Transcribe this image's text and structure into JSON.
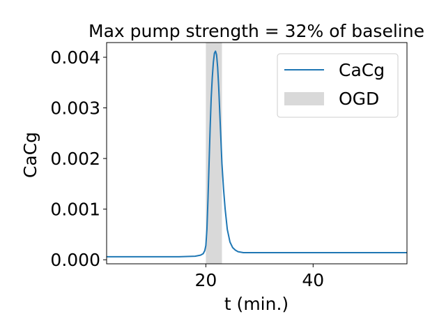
{
  "chart_data": {
    "type": "line",
    "title": "Max pump strength = 32% of baseline",
    "xlabel": "t (min.)",
    "ylabel": "CaCg",
    "xlim": [
      1.5,
      57.5
    ],
    "ylim": [
      -8e-05,
      0.00429
    ],
    "xticks": [
      20,
      40
    ],
    "xtick_labels": [
      "20",
      "40"
    ],
    "yticks": [
      0.0,
      0.001,
      0.002,
      0.003,
      0.004
    ],
    "ytick_labels": [
      "0.000",
      "0.001",
      "0.002",
      "0.003",
      "0.004"
    ],
    "grid": false,
    "legend_position": "upper right",
    "legend": [
      {
        "label": "CaCg",
        "kind": "line",
        "color": "#1f77b4"
      },
      {
        "label": "OGD",
        "kind": "patch",
        "color": "#d9d9d9"
      }
    ],
    "shaded_regions": [
      {
        "name": "OGD",
        "x_start": 20.0,
        "x_end": 23.0,
        "color": "#d9d9d9"
      }
    ],
    "series": [
      {
        "name": "CaCg",
        "color": "#1f77b4",
        "x": [
          1.5,
          5,
          10,
          15,
          18,
          19,
          19.5,
          19.8,
          20.0,
          20.2,
          20.4,
          20.6,
          20.8,
          21.0,
          21.2,
          21.4,
          21.6,
          21.8,
          22.0,
          22.2,
          22.4,
          22.6,
          22.8,
          23.0,
          23.3,
          23.6,
          24.0,
          24.5,
          25.0,
          25.5,
          26.0,
          27.0,
          28.0,
          30.0,
          35.0,
          40.0,
          45.0,
          50.0,
          57.5
        ],
        "y": [
          6e-05,
          6e-05,
          6e-05,
          6e-05,
          7e-05,
          9e-05,
          0.00012,
          0.00018,
          0.00028,
          0.0006,
          0.0012,
          0.0019,
          0.0026,
          0.0032,
          0.0036,
          0.0039,
          0.00408,
          0.00412,
          0.00405,
          0.0038,
          0.0034,
          0.0029,
          0.0024,
          0.0019,
          0.0014,
          0.001,
          0.0006,
          0.00035,
          0.00024,
          0.00019,
          0.00016,
          0.00014,
          0.00014,
          0.00014,
          0.00014,
          0.00014,
          0.00014,
          0.00014,
          0.00014
        ]
      }
    ]
  }
}
